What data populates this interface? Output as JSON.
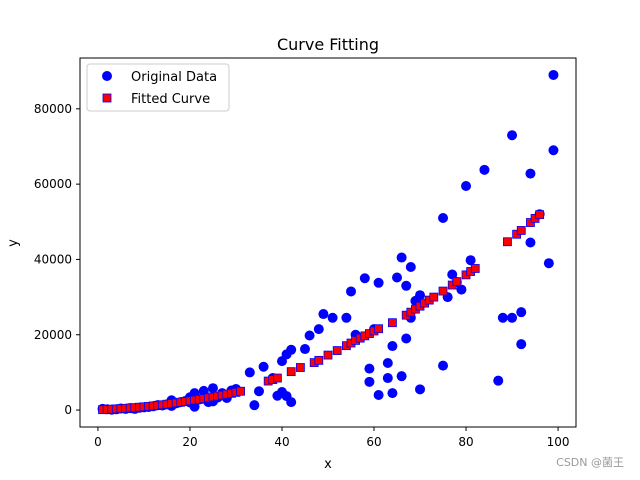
{
  "chart_data": {
    "type": "scatter",
    "title": "Curve Fitting",
    "xlabel": "x",
    "ylabel": "y",
    "xlim": [
      -3.9,
      103.9
    ],
    "ylim": [
      -4500,
      93500
    ],
    "xticks": [
      0,
      20,
      40,
      60,
      80,
      100
    ],
    "yticks": [
      0,
      20000,
      40000,
      60000,
      80000
    ],
    "grid": false,
    "legend_position": "top-left",
    "series": [
      {
        "name": "Original Data",
        "marker": "circle",
        "color": "#0000ff",
        "points": [
          [
            1,
            300
          ],
          [
            2,
            200
          ],
          [
            3,
            100
          ],
          [
            4,
            200
          ],
          [
            5,
            400
          ],
          [
            6,
            300
          ],
          [
            7,
            500
          ],
          [
            8,
            300
          ],
          [
            9,
            600
          ],
          [
            10,
            700
          ],
          [
            11,
            800
          ],
          [
            12,
            1000
          ],
          [
            13,
            1300
          ],
          [
            14,
            1200
          ],
          [
            15,
            1500
          ],
          [
            16,
            1100
          ],
          [
            16,
            2600
          ],
          [
            17,
            1800
          ],
          [
            18,
            2100
          ],
          [
            19,
            2400
          ],
          [
            20,
            2000
          ],
          [
            20,
            3400
          ],
          [
            21,
            900
          ],
          [
            21,
            4500
          ],
          [
            22,
            2800
          ],
          [
            23,
            5100
          ],
          [
            24,
            2100
          ],
          [
            25,
            5800
          ],
          [
            25,
            2300
          ],
          [
            26,
            3300
          ],
          [
            27,
            4500
          ],
          [
            28,
            3200
          ],
          [
            29,
            5200
          ],
          [
            30,
            5600
          ],
          [
            33,
            10000
          ],
          [
            34,
            1300
          ],
          [
            35,
            5000
          ],
          [
            36,
            11500
          ],
          [
            38,
            8500
          ],
          [
            39,
            3800
          ],
          [
            40,
            13000
          ],
          [
            40,
            4800
          ],
          [
            41,
            3700
          ],
          [
            41,
            14800
          ],
          [
            42,
            16000
          ],
          [
            42,
            2100
          ],
          [
            45,
            16200
          ],
          [
            46,
            19800
          ],
          [
            48,
            21500
          ],
          [
            49,
            25500
          ],
          [
            51,
            24500
          ],
          [
            54,
            24500
          ],
          [
            55,
            31500
          ],
          [
            56,
            20000
          ],
          [
            58,
            35000
          ],
          [
            59,
            11000
          ],
          [
            59,
            7500
          ],
          [
            60,
            21500
          ],
          [
            61,
            33800
          ],
          [
            61,
            4000
          ],
          [
            63,
            8500
          ],
          [
            63,
            12500
          ],
          [
            64,
            17000
          ],
          [
            64,
            4500
          ],
          [
            65,
            35200
          ],
          [
            66,
            9000
          ],
          [
            66,
            40500
          ],
          [
            67,
            33000
          ],
          [
            67,
            19000
          ],
          [
            68,
            38000
          ],
          [
            68,
            24500
          ],
          [
            69,
            29000
          ],
          [
            70,
            30500
          ],
          [
            70,
            5500
          ],
          [
            75,
            51000
          ],
          [
            75,
            11800
          ],
          [
            76,
            30000
          ],
          [
            77,
            36000
          ],
          [
            78,
            34000
          ],
          [
            79,
            32000
          ],
          [
            80,
            59500
          ],
          [
            81,
            39800
          ],
          [
            84,
            63800
          ],
          [
            87,
            7800
          ],
          [
            88,
            24500
          ],
          [
            90,
            73000
          ],
          [
            90,
            24500
          ],
          [
            92,
            17500
          ],
          [
            92,
            26000
          ],
          [
            94,
            62800
          ],
          [
            94,
            44500
          ],
          [
            96,
            52000
          ],
          [
            98,
            39000
          ],
          [
            99,
            89000
          ],
          [
            99,
            69000
          ]
        ]
      },
      {
        "name": "Fitted Curve",
        "marker": "square",
        "color": "#ff0000",
        "edge_color": "#0000ff",
        "points": [
          [
            1,
            100
          ],
          [
            2,
            150
          ],
          [
            3,
            220
          ],
          [
            4,
            300
          ],
          [
            5,
            380
          ],
          [
            6,
            460
          ],
          [
            7,
            550
          ],
          [
            8,
            650
          ],
          [
            9,
            750
          ],
          [
            10,
            860
          ],
          [
            11,
            970
          ],
          [
            12,
            1100
          ],
          [
            13,
            1250
          ],
          [
            14,
            1400
          ],
          [
            15,
            1550
          ],
          [
            16,
            1720
          ],
          [
            17,
            1900
          ],
          [
            18,
            2080
          ],
          [
            19,
            2260
          ],
          [
            20,
            2450
          ],
          [
            21,
            2650
          ],
          [
            22,
            2850
          ],
          [
            23,
            3050
          ],
          [
            24,
            3250
          ],
          [
            25,
            3480
          ],
          [
            26,
            3700
          ],
          [
            27,
            3950
          ],
          [
            28,
            4200
          ],
          [
            29,
            4450
          ],
          [
            30,
            4700
          ],
          [
            31,
            5000
          ],
          [
            37,
            7700
          ],
          [
            38,
            8100
          ],
          [
            39,
            8500
          ],
          [
            42,
            10200
          ],
          [
            44,
            11300
          ],
          [
            47,
            12600
          ],
          [
            48,
            13200
          ],
          [
            50,
            14600
          ],
          [
            52,
            15800
          ],
          [
            54,
            17100
          ],
          [
            55,
            17800
          ],
          [
            56,
            18500
          ],
          [
            57,
            19100
          ],
          [
            58,
            19700
          ],
          [
            59,
            20300
          ],
          [
            60,
            21000
          ],
          [
            61,
            21600
          ],
          [
            64,
            23200
          ],
          [
            67,
            25200
          ],
          [
            68,
            26000
          ],
          [
            69,
            26800
          ],
          [
            70,
            27600
          ],
          [
            71,
            28400
          ],
          [
            72,
            29200
          ],
          [
            73,
            30000
          ],
          [
            75,
            31600
          ],
          [
            77,
            33200
          ],
          [
            78,
            34100
          ],
          [
            80,
            35900
          ],
          [
            81,
            36800
          ],
          [
            82,
            37600
          ],
          [
            89,
            44700
          ],
          [
            91,
            46700
          ],
          [
            92,
            47700
          ],
          [
            94,
            49800
          ],
          [
            95,
            50900
          ],
          [
            96,
            51900
          ]
        ]
      }
    ]
  },
  "watermark": "CSDN @菌王"
}
